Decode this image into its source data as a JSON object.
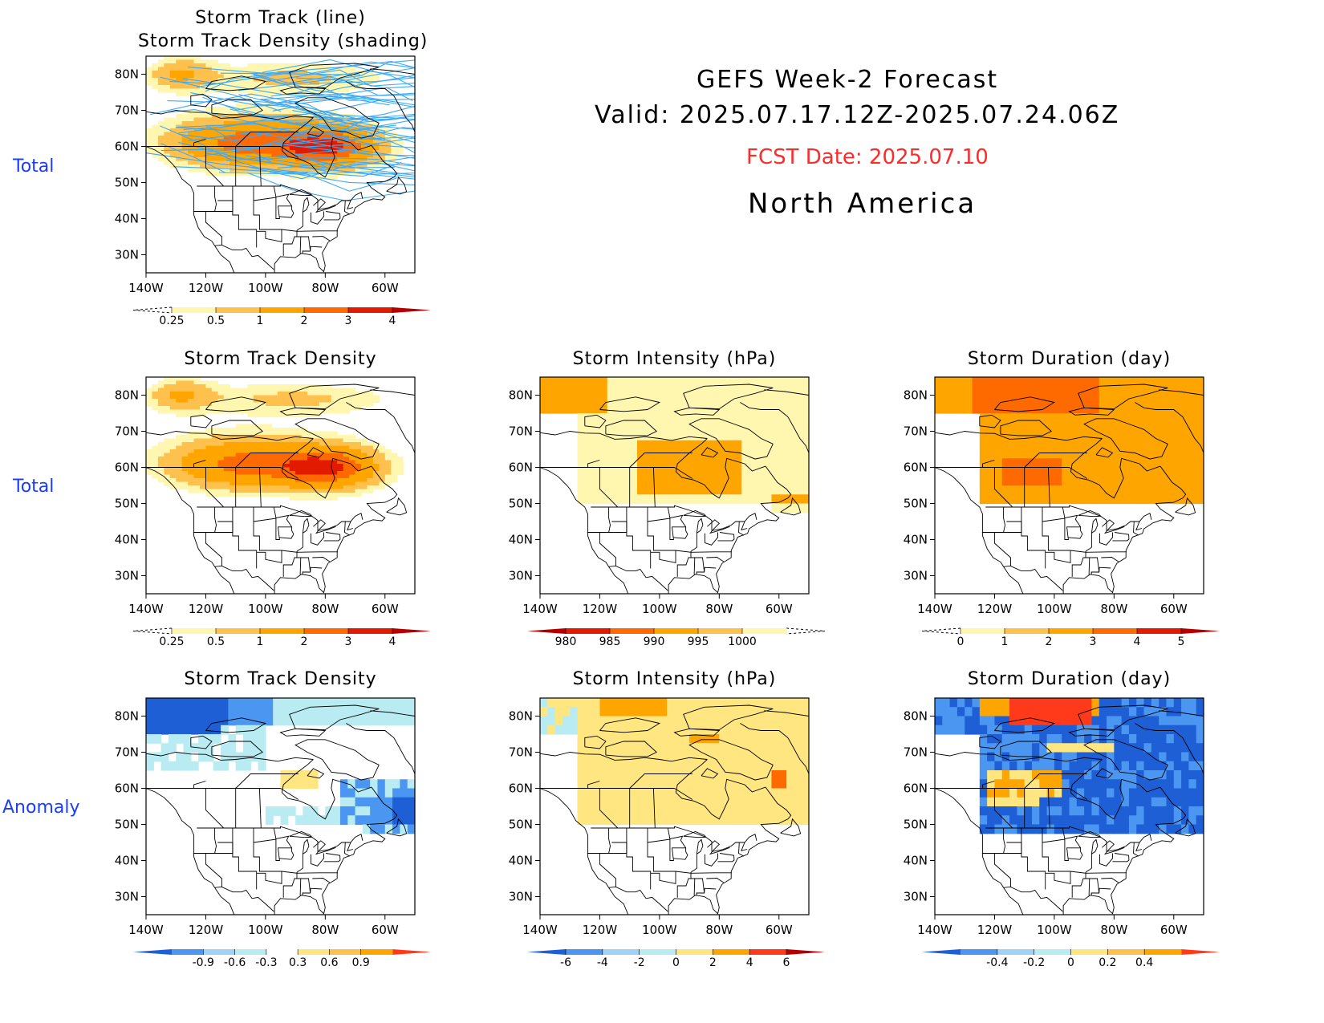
{
  "header": {
    "title": "GEFS Week-2 Forecast",
    "valid": "Valid: 2025.07.17.12Z-2025.07.24.06Z",
    "fcst": "FCST Date: 2025.07.10",
    "region": "North America"
  },
  "row_labels": [
    "Total",
    "Total",
    "Anomaly"
  ],
  "axes": {
    "lat_ticks": [
      "80N",
      "70N",
      "60N",
      "50N",
      "40N",
      "30N"
    ],
    "lon_ticks": [
      "140W",
      "120W",
      "100W",
      "80W",
      "60W"
    ]
  },
  "panels": [
    {
      "id": "p1",
      "title_lines": [
        "Storm Track (line)",
        "Storm Track Density (shading)"
      ],
      "field": "density",
      "tracks": true,
      "colorbar": {
        "labels": [
          "0.25",
          "0.5",
          "1",
          "2",
          "3",
          "4"
        ],
        "colors": [
          "#fff6b0",
          "#ffc14d",
          "#ffa500",
          "#ff6a00",
          "#e11a00"
        ],
        "left": "dashed",
        "right_color": "#b40000"
      }
    },
    {
      "id": "p2",
      "title_lines": [
        "Storm Track Density"
      ],
      "field": "density",
      "tracks": false,
      "colorbar": {
        "labels": [
          "0.25",
          "0.5",
          "1",
          "2",
          "3",
          "4"
        ],
        "colors": [
          "#fff6b0",
          "#ffc14d",
          "#ffa500",
          "#ff6a00",
          "#e11a00"
        ],
        "left": "dashed",
        "right_color": "#b40000"
      }
    },
    {
      "id": "p3",
      "title_lines": [
        "Storm Intensity (hPa)"
      ],
      "field": "intensity",
      "tracks": false,
      "colorbar": {
        "labels": [
          "980",
          "985",
          "990",
          "995",
          "1000"
        ],
        "colors": [
          "#e11a00",
          "#ff6a00",
          "#ffa500",
          "#ffc14d",
          "#fff6b0"
        ],
        "left_color": "#b40000",
        "right": "dashed"
      }
    },
    {
      "id": "p4",
      "title_lines": [
        "Storm Duration (day)"
      ],
      "field": "duration",
      "tracks": false,
      "colorbar": {
        "labels": [
          "0",
          "1",
          "2",
          "3",
          "4",
          "5"
        ],
        "colors": [
          "#fff6b0",
          "#ffc14d",
          "#ffa500",
          "#ff6a00",
          "#e11a00"
        ],
        "left": "dashed",
        "right_color": "#b40000"
      }
    },
    {
      "id": "p5",
      "title_lines": [
        "Storm Track Density"
      ],
      "field": "density_anom",
      "tracks": false,
      "colorbar": {
        "labels": [
          "-0.9",
          "-0.6",
          "-0.3",
          "0.3",
          "0.6",
          "0.9"
        ],
        "colors": [
          "#4a96f0",
          "#9fd2f5",
          "#b8ecf2",
          "#ffffff",
          "#ffe680",
          "#ffc14d",
          "#ffa500"
        ],
        "left_color": "#1e5fd6",
        "right_color": "#ff3a1a",
        "center_white": true
      }
    },
    {
      "id": "p6",
      "title_lines": [
        "Storm Intensity (hPa)"
      ],
      "field": "intensity_anom",
      "tracks": false,
      "colorbar": {
        "labels": [
          "-6",
          "-4",
          "-2",
          "0",
          "2",
          "4",
          "6"
        ],
        "colors": [
          "#4a96f0",
          "#9fd2f5",
          "#b8ecf2",
          "#ffe680",
          "#ffa500",
          "#ff3a1a"
        ],
        "left_color": "#1e5fd6",
        "right_color": "#b40000"
      }
    },
    {
      "id": "p7",
      "title_lines": [
        "Storm Duration (day)"
      ],
      "field": "duration_anom",
      "tracks": false,
      "colorbar": {
        "labels": [
          "-0.4",
          "-0.2",
          "0",
          "0.2",
          "0.4"
        ],
        "colors": [
          "#4a96f0",
          "#9fd2f5",
          "#b8ecf2",
          "#ffe680",
          "#ffc14d",
          "#ffa500"
        ],
        "left_color": "#1e5fd6",
        "right_color": "#ff3a1a"
      }
    }
  ]
}
